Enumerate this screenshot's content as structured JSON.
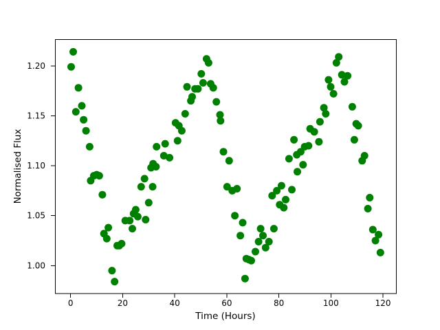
{
  "figure": {
    "background_color": "#ffffff",
    "axes_color": "#000000"
  },
  "chart_data": {
    "type": "scatter",
    "title": "",
    "xlabel": "Time (Hours)",
    "ylabel": "Normalised Flux",
    "legend": null,
    "grid": false,
    "xlim": [
      -6,
      125
    ],
    "ylim": [
      0.972,
      1.226
    ],
    "x_ticks": [
      {
        "value": 0,
        "label": "0"
      },
      {
        "value": 20,
        "label": "20"
      },
      {
        "value": 40,
        "label": "40"
      },
      {
        "value": 60,
        "label": "60"
      },
      {
        "value": 80,
        "label": "80"
      },
      {
        "value": 100,
        "label": "100"
      },
      {
        "value": 120,
        "label": "120"
      }
    ],
    "y_ticks": [
      {
        "value": 1.0,
        "label": "1.00"
      },
      {
        "value": 1.05,
        "label": "1.05"
      },
      {
        "value": 1.1,
        "label": "1.10"
      },
      {
        "value": 1.15,
        "label": "1.15"
      },
      {
        "value": 1.2,
        "label": "1.20"
      }
    ],
    "marker_color": "#008000",
    "marker_radius": 5.5,
    "points": [
      [
        0.2,
        1.199
      ],
      [
        1.0,
        1.214
      ],
      [
        2.0,
        1.154
      ],
      [
        3.0,
        1.178
      ],
      [
        4.3,
        1.16
      ],
      [
        5.0,
        1.146
      ],
      [
        5.9,
        1.135
      ],
      [
        7.3,
        1.119
      ],
      [
        7.7,
        1.085
      ],
      [
        8.9,
        1.09
      ],
      [
        10.0,
        1.091
      ],
      [
        11.0,
        1.09
      ],
      [
        12.2,
        1.071
      ],
      [
        12.8,
        1.032
      ],
      [
        13.9,
        1.027
      ],
      [
        14.5,
        1.038
      ],
      [
        15.9,
        0.995
      ],
      [
        16.9,
        0.984
      ],
      [
        17.9,
        1.02
      ],
      [
        18.7,
        1.02
      ],
      [
        19.6,
        1.022
      ],
      [
        21.0,
        1.045
      ],
      [
        22.7,
        1.045
      ],
      [
        23.7,
        1.037
      ],
      [
        24.2,
        1.052
      ],
      [
        25.0,
        1.056
      ],
      [
        25.8,
        1.049
      ],
      [
        27.1,
        1.079
      ],
      [
        28.4,
        1.087
      ],
      [
        28.8,
        1.046
      ],
      [
        30.0,
        1.063
      ],
      [
        30.9,
        1.098
      ],
      [
        31.5,
        1.079
      ],
      [
        31.7,
        1.102
      ],
      [
        32.8,
        1.099
      ],
      [
        33.0,
        1.119
      ],
      [
        35.8,
        1.11
      ],
      [
        36.3,
        1.122
      ],
      [
        38.0,
        1.108
      ],
      [
        40.3,
        1.143
      ],
      [
        41.1,
        1.125
      ],
      [
        41.6,
        1.14
      ],
      [
        42.7,
        1.135
      ],
      [
        44.0,
        1.152
      ],
      [
        44.7,
        1.179
      ],
      [
        46.2,
        1.165
      ],
      [
        46.7,
        1.169
      ],
      [
        47.8,
        1.177
      ],
      [
        48.9,
        1.177
      ],
      [
        50.2,
        1.192
      ],
      [
        50.9,
        1.183
      ],
      [
        52.2,
        1.207
      ],
      [
        53.0,
        1.203
      ],
      [
        53.8,
        1.182
      ],
      [
        54.8,
        1.178
      ],
      [
        56.0,
        1.164
      ],
      [
        57.4,
        1.151
      ],
      [
        57.6,
        1.145
      ],
      [
        58.7,
        1.114
      ],
      [
        60.1,
        1.079
      ],
      [
        60.9,
        1.105
      ],
      [
        62.1,
        1.075
      ],
      [
        63.1,
        1.05
      ],
      [
        63.9,
        1.077
      ],
      [
        65.2,
        1.03
      ],
      [
        66.1,
        1.043
      ],
      [
        67.0,
        0.987
      ],
      [
        67.5,
        1.007
      ],
      [
        68.5,
        1.006
      ],
      [
        69.4,
        1.005
      ],
      [
        71.0,
        1.014
      ],
      [
        72.2,
        1.024
      ],
      [
        73.0,
        1.037
      ],
      [
        73.9,
        1.03
      ],
      [
        74.9,
        1.018
      ],
      [
        76.2,
        1.024
      ],
      [
        77.4,
        1.07
      ],
      [
        78.1,
        1.037
      ],
      [
        79.2,
        1.075
      ],
      [
        80.3,
        1.061
      ],
      [
        81.0,
        1.08
      ],
      [
        81.9,
        1.058
      ],
      [
        82.6,
        1.066
      ],
      [
        83.9,
        1.107
      ],
      [
        85.0,
        1.076
      ],
      [
        85.8,
        1.126
      ],
      [
        86.9,
        1.111
      ],
      [
        87.1,
        1.094
      ],
      [
        88.4,
        1.114
      ],
      [
        89.3,
        1.101
      ],
      [
        89.9,
        1.119
      ],
      [
        91.4,
        1.12
      ],
      [
        92.0,
        1.137
      ],
      [
        93.6,
        1.134
      ],
      [
        95.4,
        1.124
      ],
      [
        95.8,
        1.144
      ],
      [
        97.3,
        1.158
      ],
      [
        98.0,
        1.152
      ],
      [
        99.1,
        1.186
      ],
      [
        99.9,
        1.179
      ],
      [
        101.0,
        1.172
      ],
      [
        102.1,
        1.203
      ],
      [
        103.0,
        1.209
      ],
      [
        104.2,
        1.191
      ],
      [
        105.2,
        1.184
      ],
      [
        106.4,
        1.19
      ],
      [
        108.2,
        1.159
      ],
      [
        109.0,
        1.126
      ],
      [
        109.7,
        1.142
      ],
      [
        110.5,
        1.14
      ],
      [
        112.0,
        1.105
      ],
      [
        112.9,
        1.11
      ],
      [
        114.2,
        1.057
      ],
      [
        114.9,
        1.068
      ],
      [
        116.1,
        1.036
      ],
      [
        117.1,
        1.025
      ],
      [
        118.3,
        1.031
      ],
      [
        119.0,
        1.013
      ]
    ]
  }
}
